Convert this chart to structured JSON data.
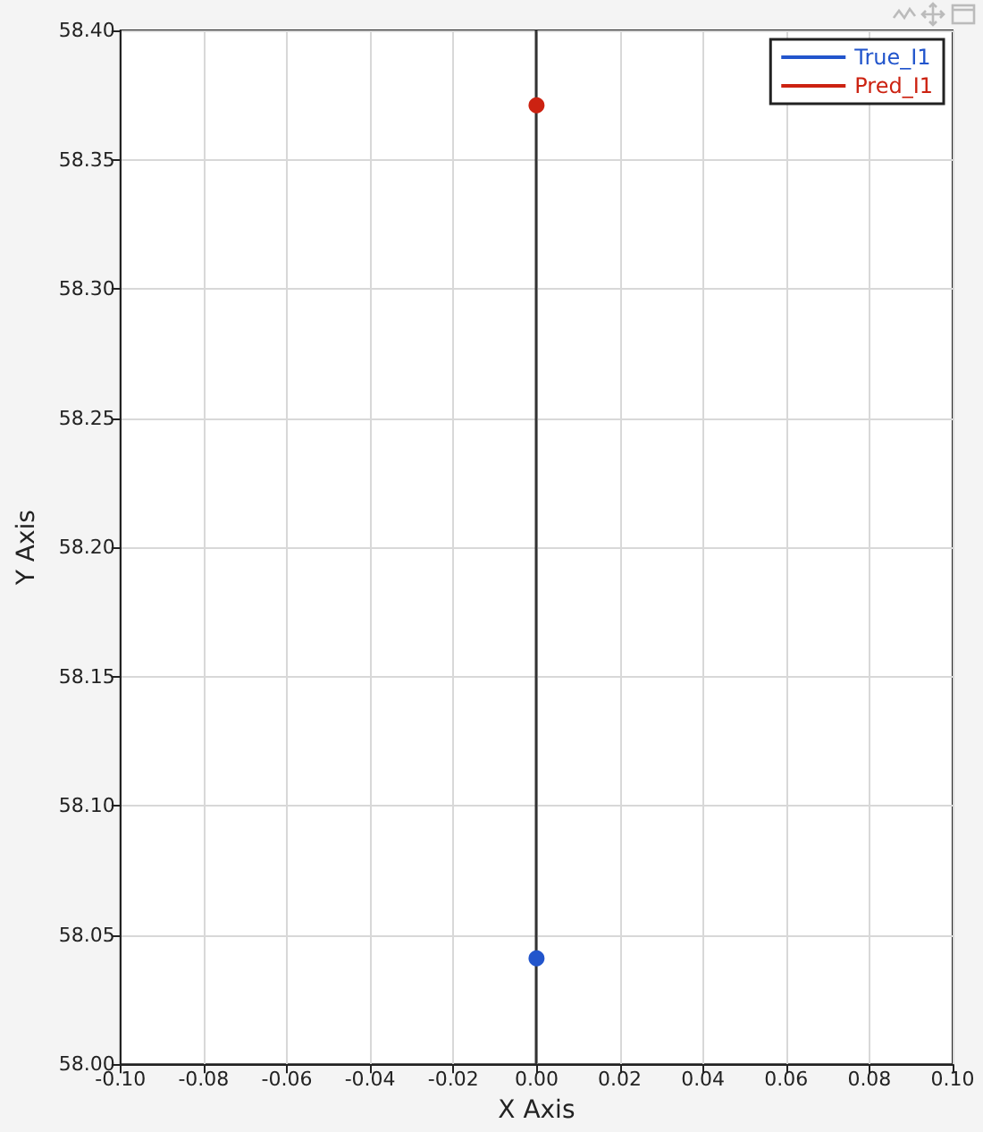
{
  "chart_data": {
    "type": "line",
    "xlabel": "X Axis",
    "ylabel": "Y Axis",
    "x": [
      0
    ],
    "series": [
      {
        "name": "True_I1",
        "color": "#2255cc",
        "values": [
          58.041
        ]
      },
      {
        "name": "Pred_I1",
        "color": "#cc2211",
        "values": [
          58.371
        ]
      }
    ],
    "xlim": [
      -0.1,
      0.1
    ],
    "xticks": [
      {
        "value": -0.1,
        "label": "-0.10"
      },
      -0.08,
      -0.06,
      -0.04,
      -0.02,
      {
        "value": 0,
        "label": "0.00"
      },
      0.02,
      0.04,
      0.06,
      0.08,
      {
        "value": 0.1,
        "label": "0.10"
      }
    ],
    "ylim": [
      58,
      58.4
    ],
    "yticks": [
      {
        "value": 58,
        "label": "58.00"
      },
      58.05,
      {
        "value": 58.1,
        "label": "58.10"
      },
      58.15,
      {
        "value": 58.2,
        "label": "58.20"
      },
      58.25,
      {
        "value": 58.3,
        "label": "58.30"
      },
      58.35,
      {
        "value": 58.4,
        "label": "58.40"
      }
    ],
    "ref_lines": [
      {
        "axis": "x",
        "value": 0,
        "color": "#333333"
      }
    ],
    "grid": true,
    "legend": "top right",
    "marker": "circle"
  }
}
